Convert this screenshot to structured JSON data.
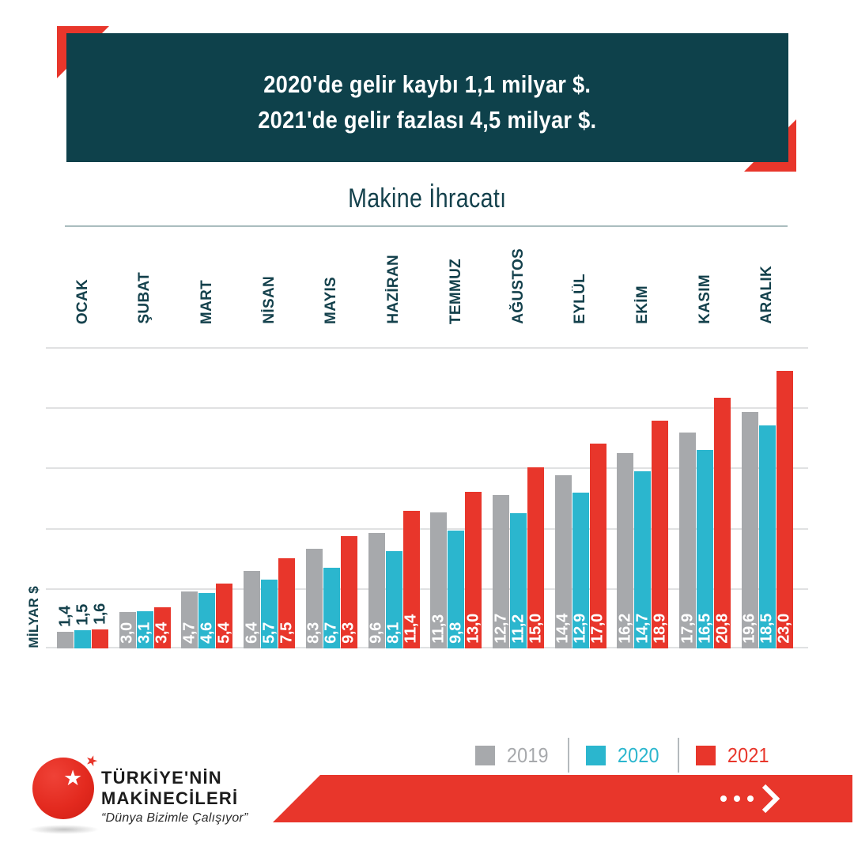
{
  "colors": {
    "teal": "#0e414b",
    "red": "#e8362b",
    "cyan": "#2bb6ce",
    "gray": "#a7a9ac",
    "label_dark": "#14414c"
  },
  "header": {
    "line1": "2020'de gelir kaybı 1,1 milyar $.",
    "line2": "2021'de gelir fazlası 4,5 milyar $."
  },
  "chart_data": {
    "type": "bar",
    "title": "Makine İhracatı",
    "ylabel": "MİLYAR $",
    "ylim": [
      0,
      25
    ],
    "gridline_step": 5,
    "grid": true,
    "legend_position": "bottom-right",
    "categories": [
      "OCAK",
      "ŞUBAT",
      "MART",
      "NİSAN",
      "MAYIS",
      "HAZİRAN",
      "TEMMUZ",
      "AĞUSTOS",
      "EYLÜL",
      "EKİM",
      "KASIM",
      "ARALIK"
    ],
    "series": [
      {
        "name": "2019",
        "color_key": "gray",
        "values": [
          1.4,
          3.0,
          4.7,
          6.4,
          8.3,
          9.6,
          11.3,
          12.7,
          14.4,
          16.2,
          17.9,
          19.6
        ]
      },
      {
        "name": "2020",
        "color_key": "cyan",
        "values": [
          1.5,
          3.1,
          4.6,
          5.7,
          6.7,
          8.1,
          9.8,
          11.2,
          12.9,
          14.7,
          16.5,
          18.5
        ]
      },
      {
        "name": "2021",
        "color_key": "red",
        "values": [
          1.6,
          3.4,
          5.4,
          7.5,
          9.3,
          11.4,
          13.0,
          15.0,
          17.0,
          18.9,
          20.8,
          23.0
        ]
      }
    ],
    "value_label_format": "comma-decimal"
  },
  "legend": {
    "items": [
      {
        "label": "2019",
        "color_key": "gray"
      },
      {
        "label": "2020",
        "color_key": "cyan"
      },
      {
        "label": "2021",
        "color_key": "red"
      }
    ]
  },
  "footer": {
    "brand_line1": "TÜRKİYE'NİN",
    "brand_line2": "MAKİNECİLERİ",
    "brand_tagline": "“Dünya Bizimle Çalışıyor”"
  }
}
